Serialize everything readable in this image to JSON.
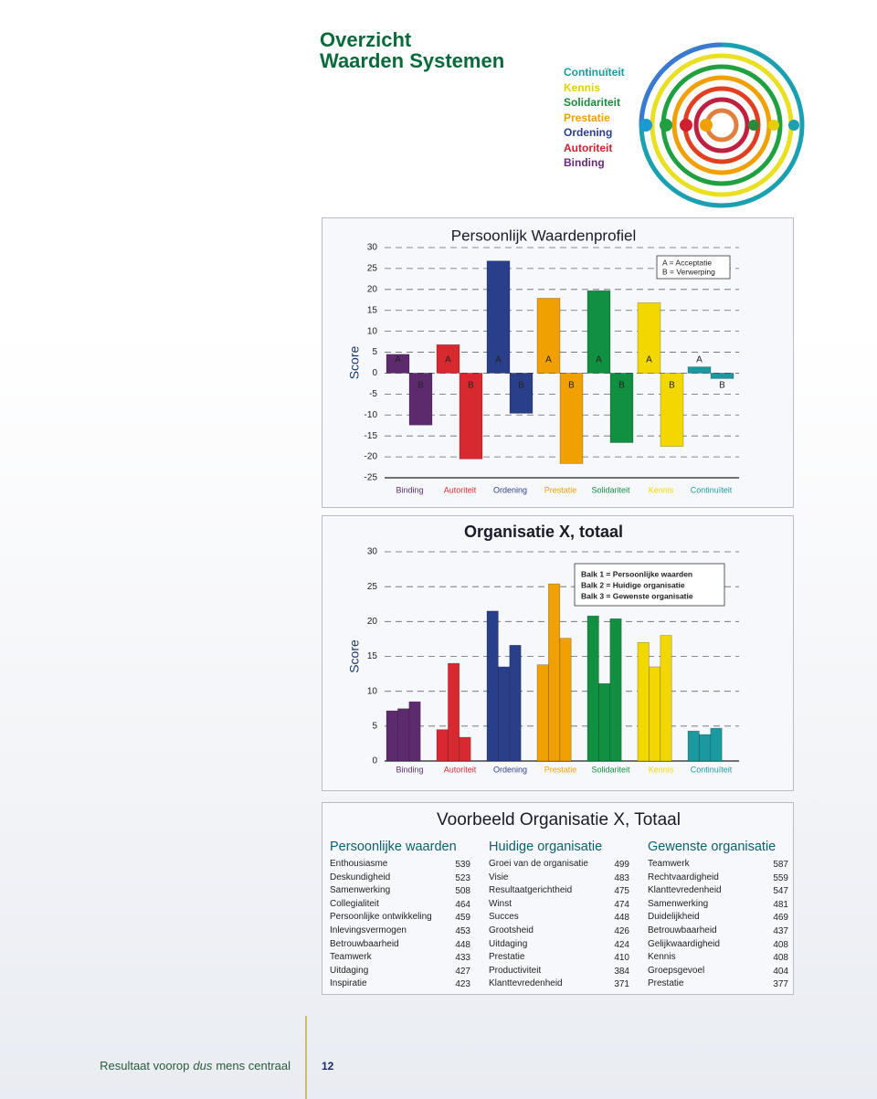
{
  "header": {
    "title": [
      "Overzicht",
      "Waarden Systemen"
    ],
    "values": [
      {
        "name": "Continuïteit",
        "color": "#1a9aa0"
      },
      {
        "name": "Kennis",
        "color": "#e6cf00"
      },
      {
        "name": "Solidariteit",
        "color": "#1a8a3a"
      },
      {
        "name": "Prestatie",
        "color": "#f0a000"
      },
      {
        "name": "Ordening",
        "color": "#2a3f8a"
      },
      {
        "name": "Autoriteit",
        "color": "#d02030"
      },
      {
        "name": "Binding",
        "color": "#6a2a7a"
      }
    ]
  },
  "chart_data": [
    {
      "type": "bar",
      "title": "Persoonlijk Waardenprofiel",
      "y_label": "Score",
      "categories": [
        "Binding",
        "Autoriteit",
        "Ordening",
        "Prestatie",
        "Solidariteit",
        "Kennis",
        "Continuïteit"
      ],
      "category_colors": [
        "#5e2a6e",
        "#d82830",
        "#2a3f8a",
        "#f0a000",
        "#109040",
        "#f2d800",
        "#1a9aa0"
      ],
      "series": [
        {
          "name": "A = Acceptatie",
          "label": "A",
          "values": [
            4.5,
            6.8,
            26.8,
            17.9,
            19.7,
            16.8,
            1.5
          ]
        },
        {
          "name": "B = Verwerping",
          "label": "B",
          "values": [
            -12.4,
            -20.5,
            -9.6,
            -21.6,
            -16.6,
            -17.5,
            -1.3
          ]
        }
      ],
      "ylim": [
        -25,
        30
      ],
      "yticks": [
        -25,
        -20,
        -15,
        -10,
        -5,
        0,
        5,
        10,
        15,
        20,
        25,
        30
      ],
      "grid": true,
      "legend": "top-right"
    },
    {
      "type": "bar",
      "title": "Organisatie X, totaal",
      "y_label": "Score",
      "categories": [
        "Binding",
        "Autoriteit",
        "Ordening",
        "Prestatie",
        "Solidariteit",
        "Kennis",
        "Continuïteit"
      ],
      "category_colors": [
        "#5e2a6e",
        "#d82830",
        "#2a3f8a",
        "#f0a000",
        "#109040",
        "#f2d800",
        "#1a9aa0"
      ],
      "series": [
        {
          "name": "Balk 1 = Persoonlijke waarden",
          "values": [
            7.2,
            4.5,
            21.5,
            13.8,
            20.8,
            17.0,
            4.3
          ]
        },
        {
          "name": "Balk 2 = Huidige organisatie",
          "values": [
            7.5,
            14.0,
            13.5,
            25.4,
            11.1,
            13.5,
            3.8
          ]
        },
        {
          "name": "Balk 3 = Gewenste organisatie",
          "values": [
            8.5,
            3.4,
            16.6,
            17.6,
            20.4,
            18.0,
            4.7
          ]
        }
      ],
      "ylim": [
        0,
        30
      ],
      "yticks": [
        0,
        5,
        10,
        15,
        20,
        25,
        30
      ],
      "grid": true,
      "legend": "top-right"
    }
  ],
  "table": {
    "title": "Voorbeeld Organisatie X, Totaal",
    "columns": [
      {
        "heading": "Persoonlijke waarden",
        "rows": [
          [
            "Enthousiasme",
            539
          ],
          [
            "Deskundigheid",
            523
          ],
          [
            "Samenwerking",
            508
          ],
          [
            "Collegialiteit",
            464
          ],
          [
            "Persoonlijke ontwikkeling",
            459
          ],
          [
            "Inlevingsvermogen",
            453
          ],
          [
            "Betrouwbaarheid",
            448
          ],
          [
            "Teamwerk",
            433
          ],
          [
            "Uitdaging",
            427
          ],
          [
            "Inspiratie",
            423
          ]
        ]
      },
      {
        "heading": "Huidige organisatie",
        "rows": [
          [
            "Groei van de organisatie",
            499
          ],
          [
            "Visie",
            483
          ],
          [
            "Resultaatgerichtheid",
            475
          ],
          [
            "Winst",
            474
          ],
          [
            "Succes",
            448
          ],
          [
            "Grootsheid",
            426
          ],
          [
            "Uitdaging",
            424
          ],
          [
            "Prestatie",
            410
          ],
          [
            "Productiviteit",
            384
          ],
          [
            "Klanttevredenheid",
            371
          ]
        ]
      },
      {
        "heading": "Gewenste organisatie",
        "rows": [
          [
            "Teamwerk",
            587
          ],
          [
            "Rechtvaardigheid",
            559
          ],
          [
            "Klanttevredenheid",
            547
          ],
          [
            "Samenwerking",
            481
          ],
          [
            "Duidelijkheid",
            469
          ],
          [
            "Betrouwbaarheid",
            437
          ],
          [
            "Gelijkwaardigheid",
            408
          ],
          [
            "Kennis",
            408
          ],
          [
            "Groepsgevoel",
            404
          ],
          [
            "Prestatie",
            377
          ]
        ]
      }
    ]
  },
  "footer": {
    "text": [
      "Resultaat voorop",
      "dus",
      "mens centraal"
    ],
    "page": 12
  }
}
